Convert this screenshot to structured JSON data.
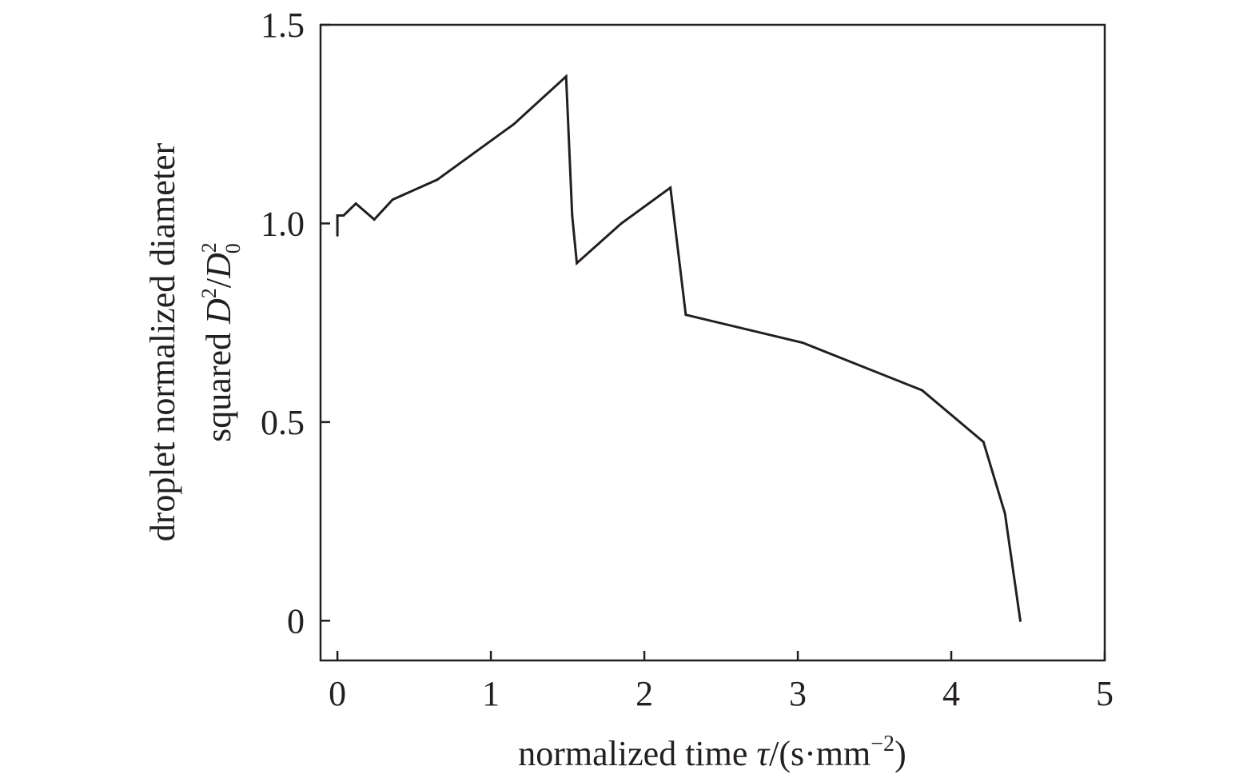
{
  "chart_data": {
    "type": "line",
    "title": "",
    "xlabel": {
      "text": "normalized time ",
      "symbol": "τ",
      "unit_open": "/(s·mm",
      "unit_exp": "−2",
      "unit_close": ")"
    },
    "ylabel": {
      "line1": "droplet normalized diameter",
      "line2_text": "squared ",
      "sym1": "D",
      "sup1": "2",
      "slash": "/",
      "sym2": "D",
      "sup2": "2",
      "sub2": "0"
    },
    "xlim": [
      -0.11,
      5.0
    ],
    "ylim": [
      -0.1,
      1.5
    ],
    "xticks": [
      0,
      1,
      2,
      3,
      4,
      5
    ],
    "xtick_labels": [
      "0",
      "1",
      "2",
      "3",
      "4",
      "5"
    ],
    "yticks": [
      0,
      0.5,
      1.0,
      1.5
    ],
    "ytick_labels": [
      "0",
      "0.5",
      "1.0",
      "1.5"
    ],
    "grid": false,
    "legend": "none",
    "line_color": "#231f20",
    "series": [
      {
        "x": [
          0,
          0,
          0.01,
          0.04,
          0.12,
          0.24,
          0.36,
          0.65,
          1.15,
          1.49,
          1.53,
          1.56,
          1.85,
          2.17,
          2.27,
          3.03,
          3.81,
          4.21,
          4.35,
          4.45
        ],
        "y": [
          0.97,
          1.02,
          1.02,
          1.02,
          1.05,
          1.01,
          1.06,
          1.11,
          1.25,
          1.37,
          1.02,
          0.9,
          1.0,
          1.09,
          0.77,
          0.7,
          0.58,
          0.45,
          0.27,
          0.0
        ]
      }
    ]
  }
}
